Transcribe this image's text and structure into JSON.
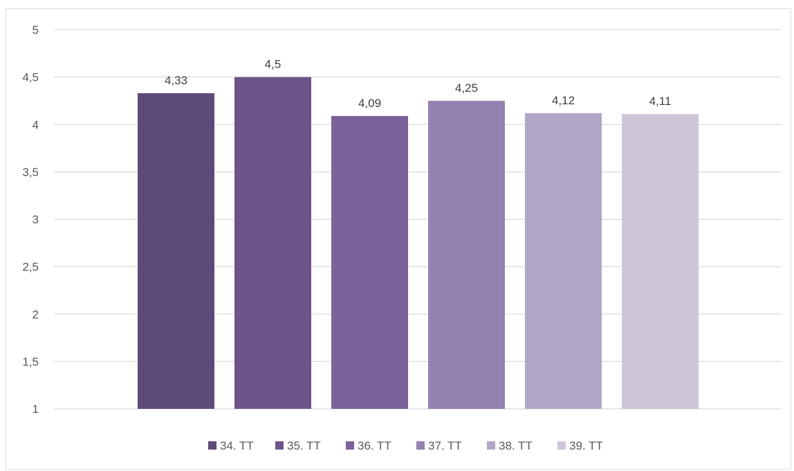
{
  "chart_data": {
    "type": "bar",
    "categories": [
      "34. TT",
      "35. TT",
      "36. TT",
      "37. TT",
      "38. TT",
      "39. TT"
    ],
    "values": [
      4.33,
      4.5,
      4.09,
      4.25,
      4.12,
      4.11
    ],
    "data_labels": [
      "4,33",
      "4,5",
      "4,09",
      "4,25",
      "4,12",
      "4,11"
    ],
    "colors": [
      "#5e4a78",
      "#6c5489",
      "#7c629b",
      "#9582b1",
      "#b0a6c5",
      "#cdc6d8"
    ],
    "ylim": [
      1,
      5
    ],
    "y_ticks": [
      1,
      1.5,
      2,
      2.5,
      3,
      3.5,
      4,
      4.5,
      5
    ],
    "y_tick_labels": [
      "1",
      "1,5",
      "2",
      "2,5",
      "3",
      "3,5",
      "4",
      "4,5",
      "5"
    ],
    "grid": true,
    "legend_position": "bottom",
    "title": "",
    "xlabel": "",
    "ylabel": ""
  }
}
